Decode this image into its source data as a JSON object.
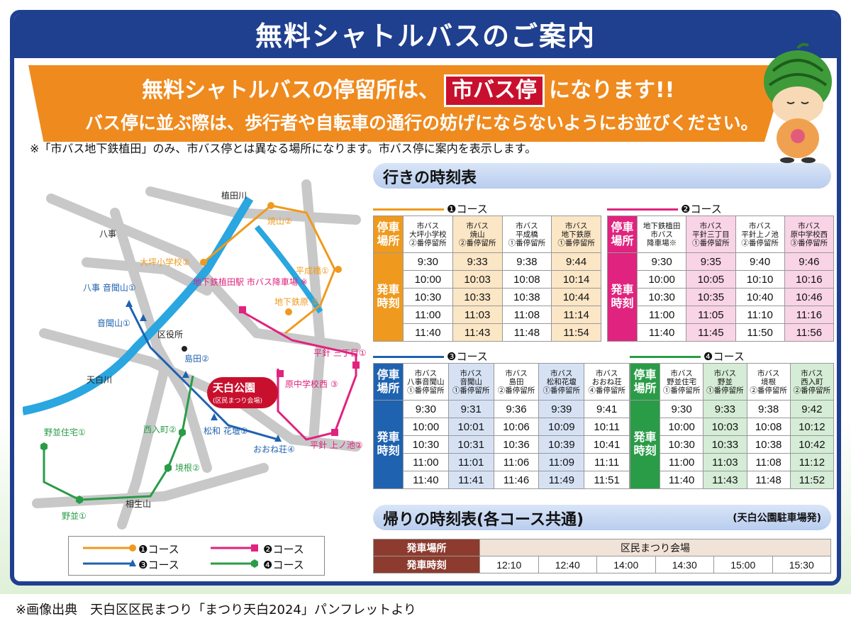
{
  "title": "無料シャトルバスのご案内",
  "banner": {
    "line1_a": "無料シャトルバスの停留所は、",
    "line1_highlight": "市バス停",
    "line1_b": "になります!!",
    "line2": "バス停に並ぶ際は、歩行者や自転車の通行の妨げにならないようにお並びください。"
  },
  "note": "※「市バス地下鉄植田」のみ、市バス停とは異なる場所になります。市バス停に案内を表示します。",
  "map": {
    "labels": {
      "hattori_road": "八事",
      "uedagawa": "植田川",
      "tempakugawa": "天白川",
      "aioiyama": "相生山",
      "kuyakusho": "区役所",
      "yakiyama": "焼山②",
      "otsubo": "大坪小学校②",
      "heiseibashi": "平成橋①",
      "ueda_station": "地下鉄植田駅\n市バス降車場 ※",
      "chikatetsuhara": "地下鉄原\n①",
      "yagoto_onkizan": "八事\n音聞山①",
      "onkizan": "音聞山①",
      "shimada": "島田②",
      "tempaku_park": "天白公園",
      "tempaku_park_sub": "(区民まつり会場)",
      "hirabari3": "平針\n三丁目①",
      "harachu": "原中学校西\n③",
      "matsuwa": "松和\n花壇①",
      "oneso": "おおね荘④",
      "hirabari_uenoike": "平針\n上ノ池②",
      "nishiirimachi": "西入町②",
      "sakaine": "境根②",
      "nonami_jutaku": "野並住宅①",
      "nonami": "野並①"
    }
  },
  "legend": [
    {
      "label": "❶コース",
      "color": "#ef9a1e",
      "marker": "circle"
    },
    {
      "label": "❷コース",
      "color": "#e0237e",
      "marker": "square"
    },
    {
      "label": "❸コース",
      "color": "#1e62b0",
      "marker": "triangle"
    },
    {
      "label": "❹コース",
      "color": "#2a9c48",
      "marker": "hexagon"
    }
  ],
  "outbound_title": "行きの時刻表",
  "return_title": "帰りの時刻表(各コース共通)",
  "return_origin": "(天白公園駐車場発)",
  "side_labels": {
    "stop": "停車\n場所",
    "time": "発車\n時刻"
  },
  "courses": [
    {
      "name": "❶コース",
      "color": "#ef9a1e",
      "tint": "#fbe6c6",
      "stops": [
        "市バス\n大坪小学校\n②番停留所",
        "市バス\n焼山\n②番停留所",
        "市バス\n平成橋\n①番停留所",
        "市バス\n地下鉄原\n①番停留所"
      ],
      "times": [
        [
          "9:30",
          "9:33",
          "9:38",
          "9:44"
        ],
        [
          "10:00",
          "10:03",
          "10:08",
          "10:14"
        ],
        [
          "10:30",
          "10:33",
          "10:38",
          "10:44"
        ],
        [
          "11:00",
          "11:03",
          "11:08",
          "11:14"
        ],
        [
          "11:40",
          "11:43",
          "11:48",
          "11:54"
        ]
      ]
    },
    {
      "name": "❷コース",
      "color": "#e0237e",
      "tint": "#f9d3e6",
      "stops": [
        "地下鉄植田\n市バス\n降車場※",
        "市バス\n平針三丁目\n①番停留所",
        "市バス\n平針上ノ池\n②番停留所",
        "市バス\n原中学校西\n③番停留所"
      ],
      "times": [
        [
          "9:30",
          "9:35",
          "9:40",
          "9:46"
        ],
        [
          "10:00",
          "10:05",
          "10:10",
          "10:16"
        ],
        [
          "10:30",
          "10:35",
          "10:40",
          "10:46"
        ],
        [
          "11:00",
          "11:05",
          "11:10",
          "11:16"
        ],
        [
          "11:40",
          "11:45",
          "11:50",
          "11:56"
        ]
      ]
    },
    {
      "name": "❸コース",
      "color": "#1e62b0",
      "tint": "#d6e2f4",
      "stops": [
        "市バス\n八事音聞山\n①番停留所",
        "市バス\n音聞山\n①番停留所",
        "市バス\n島田\n②番停留所",
        "市バス\n松和花壇\n①番停留所",
        "市バス\nおおね荘\n④番停留所"
      ],
      "times": [
        [
          "9:30",
          "9:31",
          "9:36",
          "9:39",
          "9:41"
        ],
        [
          "10:00",
          "10:01",
          "10:06",
          "10:09",
          "10:11"
        ],
        [
          "10:30",
          "10:31",
          "10:36",
          "10:39",
          "10:41"
        ],
        [
          "11:00",
          "11:01",
          "11:06",
          "11:09",
          "11:11"
        ],
        [
          "11:40",
          "11:41",
          "11:46",
          "11:49",
          "11:51"
        ]
      ]
    },
    {
      "name": "❹コース",
      "color": "#2a9c48",
      "tint": "#d5ecd6",
      "stops": [
        "市バス\n野並住宅\n①番停留所",
        "市バス\n野並\n①番停留所",
        "市バス\n境根\n②番停留所",
        "市バス\n西入町\n②番停留所"
      ],
      "times": [
        [
          "9:30",
          "9:33",
          "9:38",
          "9:42"
        ],
        [
          "10:00",
          "10:03",
          "10:08",
          "10:12"
        ],
        [
          "10:30",
          "10:33",
          "10:38",
          "10:42"
        ],
        [
          "11:00",
          "11:03",
          "11:08",
          "11:12"
        ],
        [
          "11:40",
          "11:43",
          "11:48",
          "11:52"
        ]
      ]
    }
  ],
  "return_table": {
    "stop_label": "発車場所",
    "stop_value": "区民まつり会場",
    "time_label": "発車時刻",
    "times": [
      "12:10",
      "12:40",
      "14:00",
      "14:30",
      "15:00",
      "15:30"
    ],
    "header_color": "#8c3b2e",
    "tint": "#f1e3d8"
  },
  "footer": "※画像出典　天白区区民まつり「まつり天白2024」パンフレットより"
}
